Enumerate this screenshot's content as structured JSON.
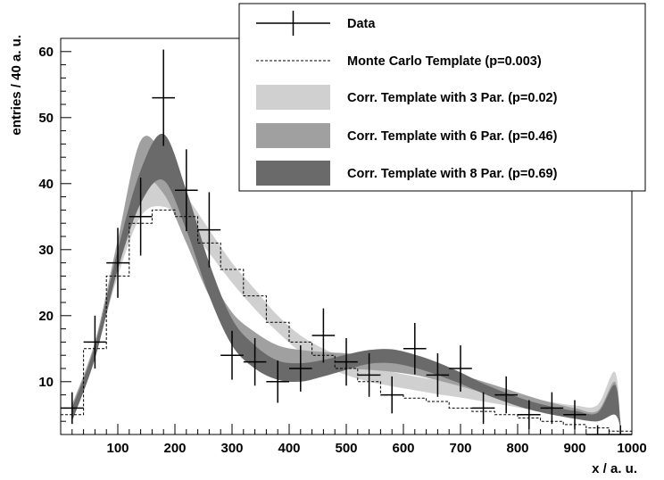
{
  "chart_data": {
    "type": "line",
    "xlabel": "x / a. u.",
    "ylabel": "entries / 40 a. u.",
    "xlim": [
      0,
      1000
    ],
    "ylim": [
      2,
      62
    ],
    "x_ticks": [
      100,
      200,
      300,
      400,
      500,
      600,
      700,
      800,
      900,
      1000
    ],
    "y_ticks": [
      10,
      20,
      30,
      40,
      50,
      60
    ],
    "grid": false,
    "legend_position": "top-right",
    "data": {
      "name": "Data",
      "x": [
        20,
        60,
        100,
        140,
        180,
        220,
        260,
        300,
        340,
        380,
        420,
        460,
        500,
        540,
        580,
        620,
        660,
        700,
        740,
        780,
        820,
        860,
        900,
        940,
        980
      ],
      "y": [
        6,
        16,
        28,
        35,
        53,
        39,
        33,
        14,
        13,
        10,
        12,
        17,
        13,
        11,
        8,
        15,
        11,
        12,
        6,
        8,
        5,
        6,
        5,
        2,
        2
      ],
      "yerr": [
        2.4,
        4,
        5.3,
        5.9,
        7.3,
        6.2,
        5.7,
        3.7,
        3.6,
        3.2,
        3.5,
        4.1,
        3.6,
        3.3,
        2.8,
        3.9,
        3.3,
        3.5,
        2.4,
        2.8,
        2.2,
        2.4,
        2.2,
        1.4,
        1.4
      ],
      "xerr": 20
    },
    "mc_template": {
      "name": "Monte Carlo Template (p=0.003)",
      "edges": [
        0,
        40,
        80,
        120,
        160,
        200,
        240,
        280,
        320,
        360,
        400,
        440,
        480,
        520,
        560,
        600,
        640,
        680,
        720,
        760,
        800,
        840,
        880,
        920,
        960,
        1000
      ],
      "values": [
        5,
        15,
        26,
        34,
        36,
        35,
        31,
        27,
        23,
        19,
        16,
        14,
        12,
        10,
        8,
        7.5,
        7,
        6,
        5.5,
        5,
        4.5,
        4,
        3.5,
        3,
        2.5
      ]
    },
    "bands": [
      {
        "name": "Corr. Template with 3 Par. (p=0.02)",
        "color": "#d0d0d0",
        "x": [
          20,
          60,
          100,
          140,
          180,
          220,
          260,
          300,
          340,
          380,
          420,
          460,
          500,
          540,
          580,
          620,
          660,
          700,
          740,
          780,
          820,
          860,
          900,
          940,
          970,
          980
        ],
        "lower": [
          4.5,
          14,
          26,
          35,
          36.5,
          34,
          29.5,
          25,
          21,
          17.5,
          14.5,
          12.5,
          11,
          10,
          9.3,
          8.7,
          8.1,
          7.6,
          7,
          6.4,
          5.8,
          5.3,
          4.8,
          4.5,
          5,
          3
        ],
        "upper": [
          6.5,
          16,
          29,
          38.5,
          41,
          38,
          33,
          28,
          24,
          20,
          17,
          15,
          13.5,
          12.3,
          11.5,
          10.8,
          10.2,
          9.5,
          8.9,
          8.2,
          7.5,
          6.9,
          6.4,
          6.5,
          11.5,
          4
        ]
      },
      {
        "name": "Corr. Template with 6 Par. (p=0.46)",
        "color": "#a0a0a0",
        "x": [
          20,
          60,
          100,
          140,
          180,
          220,
          260,
          300,
          340,
          380,
          420,
          460,
          500,
          540,
          580,
          620,
          660,
          700,
          740,
          780,
          820,
          860,
          900,
          940,
          970,
          980
        ],
        "lower": [
          4.5,
          14,
          28,
          40,
          38.5,
          31,
          23,
          17.5,
          14.5,
          13,
          12.4,
          12.2,
          12,
          11.8,
          11.5,
          11,
          10.2,
          9.3,
          8.3,
          7.3,
          6.3,
          5.5,
          4.8,
          4.3,
          6.5,
          3
        ],
        "upper": [
          6.5,
          16,
          31.5,
          46.5,
          44,
          35,
          26.5,
          20.5,
          17.5,
          15.5,
          14.8,
          14.5,
          14.3,
          14,
          13.6,
          13,
          12.1,
          11.1,
          10,
          8.9,
          7.8,
          6.8,
          6,
          5.6,
          10,
          4
        ]
      },
      {
        "name": "Corr. Template with 8 Par. (p=0.69)",
        "color": "#6a6a6a",
        "x": [
          20,
          60,
          100,
          140,
          180,
          220,
          260,
          300,
          340,
          380,
          420,
          460,
          500,
          540,
          580,
          620,
          660,
          700,
          740,
          780,
          820,
          860,
          900,
          940,
          970,
          980
        ],
        "lower": [
          4,
          13.5,
          27,
          37,
          40.5,
          33,
          23,
          15.5,
          12,
          10.3,
          10,
          10.8,
          11.8,
          12.7,
          12.8,
          12.1,
          11,
          9.7,
          8.2,
          6.9,
          5.8,
          5,
          4.4,
          4,
          5,
          3
        ],
        "upper": [
          6,
          15.5,
          30,
          42,
          47.5,
          39,
          28,
          19.5,
          15.5,
          13.2,
          12.8,
          13.3,
          14.1,
          14.8,
          14.9,
          14.1,
          12.9,
          11.4,
          9.7,
          8.3,
          7.1,
          6.2,
          5.6,
          5.3,
          9.5,
          4
        ]
      }
    ]
  }
}
